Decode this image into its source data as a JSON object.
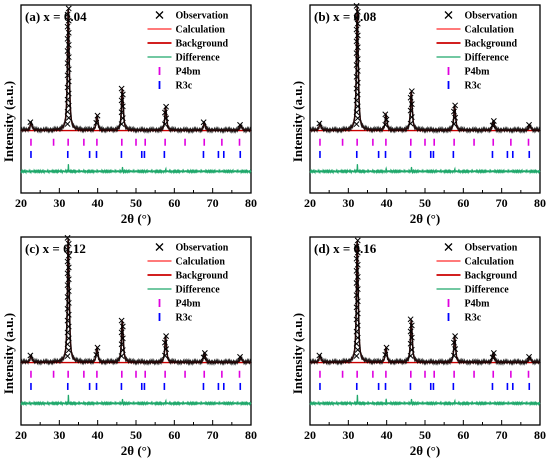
{
  "chart_data": [
    {
      "type": "line",
      "panel": "(a) x = 0.04",
      "label": "(a) x = 0.04",
      "xlabel": "2θ (°)",
      "ylabel": "Intensity (a.u.)",
      "xlim": [
        20,
        80
      ],
      "xticks": [
        20,
        30,
        40,
        50,
        60,
        70,
        80
      ],
      "peaks": [
        {
          "x": 22.6,
          "h": 0.06
        },
        {
          "x": 32.3,
          "h": 0.94
        },
        {
          "x": 39.8,
          "h": 0.11
        },
        {
          "x": 46.4,
          "h": 0.32
        },
        {
          "x": 57.7,
          "h": 0.18
        },
        {
          "x": 67.8,
          "h": 0.06
        },
        {
          "x": 77.3,
          "h": 0.04
        }
      ],
      "P4bm_ticks": [
        22.6,
        28.5,
        32.3,
        36.4,
        39.8,
        46.3,
        50.0,
        52.4,
        57.6,
        62.8,
        67.8,
        72.4,
        77.0
      ],
      "R3c_ticks": [
        22.6,
        32.2,
        37.9,
        39.7,
        46.2,
        51.5,
        52.2,
        57.4,
        67.6,
        71.5,
        72.9,
        77.2
      ],
      "diff_spikes": [
        {
          "x": 32.3,
          "h": 0.05
        },
        {
          "x": 46.4,
          "h": 0.03
        },
        {
          "x": 57.7,
          "h": 0.02
        }
      ]
    },
    {
      "type": "line",
      "panel": "(b) x = 0.08",
      "label": "(b) x = 0.08",
      "xlabel": "2θ (°)",
      "ylabel": "Intensity (a.u.)",
      "xlim": [
        20,
        80
      ],
      "xticks": [
        20,
        30,
        40,
        50,
        60,
        70,
        80
      ],
      "peaks": [
        {
          "x": 22.6,
          "h": 0.05
        },
        {
          "x": 32.3,
          "h": 0.96
        },
        {
          "x": 39.8,
          "h": 0.12
        },
        {
          "x": 46.4,
          "h": 0.3
        },
        {
          "x": 57.7,
          "h": 0.19
        },
        {
          "x": 67.8,
          "h": 0.07
        },
        {
          "x": 77.3,
          "h": 0.04
        }
      ],
      "P4bm_ticks": [
        22.6,
        28.5,
        32.3,
        36.4,
        39.8,
        46.3,
        50.0,
        52.4,
        57.6,
        62.8,
        67.8,
        72.4,
        77.0
      ],
      "R3c_ticks": [
        22.6,
        32.2,
        37.9,
        39.7,
        46.2,
        51.5,
        52.2,
        57.4,
        67.6,
        71.5,
        72.9,
        77.2
      ],
      "diff_spikes": [
        {
          "x": 32.3,
          "h": 0.05
        },
        {
          "x": 39.8,
          "h": 0.02
        },
        {
          "x": 46.4,
          "h": 0.03
        },
        {
          "x": 57.7,
          "h": 0.02
        }
      ]
    },
    {
      "type": "line",
      "panel": "(c) x = 0.12",
      "label": "(c) x = 0.12",
      "xlabel": "2θ (°)",
      "ylabel": "Intensity (a.u.)",
      "xlim": [
        20,
        80
      ],
      "xticks": [
        20,
        30,
        40,
        50,
        60,
        70,
        80
      ],
      "peaks": [
        {
          "x": 22.6,
          "h": 0.05
        },
        {
          "x": 32.3,
          "h": 0.96
        },
        {
          "x": 39.8,
          "h": 0.11
        },
        {
          "x": 46.4,
          "h": 0.32
        },
        {
          "x": 57.7,
          "h": 0.2
        },
        {
          "x": 67.8,
          "h": 0.07
        },
        {
          "x": 77.3,
          "h": 0.04
        }
      ],
      "P4bm_ticks": [
        22.6,
        28.5,
        32.3,
        36.4,
        39.8,
        46.3,
        50.0,
        52.4,
        57.6,
        62.8,
        67.8,
        72.4,
        77.0
      ],
      "R3c_ticks": [
        22.6,
        32.2,
        37.9,
        39.7,
        46.2,
        51.5,
        52.2,
        57.4,
        67.6,
        71.5,
        72.9,
        77.2
      ],
      "diff_spikes": [
        {
          "x": 32.3,
          "h": 0.06
        },
        {
          "x": 46.4,
          "h": 0.03
        },
        {
          "x": 57.7,
          "h": 0.02
        }
      ]
    },
    {
      "type": "line",
      "panel": "(d) x = 0.16",
      "label": "(d) x = 0.16",
      "xlabel": "2θ (°)",
      "ylabel": "Intensity (a.u.)",
      "xlim": [
        20,
        80
      ],
      "xticks": [
        20,
        30,
        40,
        50,
        60,
        70,
        80
      ],
      "peaks": [
        {
          "x": 22.6,
          "h": 0.05
        },
        {
          "x": 32.3,
          "h": 0.94
        },
        {
          "x": 39.8,
          "h": 0.11
        },
        {
          "x": 46.4,
          "h": 0.33
        },
        {
          "x": 57.7,
          "h": 0.2
        },
        {
          "x": 67.8,
          "h": 0.07
        },
        {
          "x": 77.3,
          "h": 0.04
        }
      ],
      "P4bm_ticks": [
        22.6,
        28.5,
        32.3,
        36.4,
        39.8,
        46.3,
        50.0,
        52.4,
        57.6,
        62.8,
        67.8,
        72.4,
        77.0
      ],
      "R3c_ticks": [
        22.6,
        32.2,
        37.9,
        39.7,
        46.2,
        51.5,
        52.2,
        57.4,
        67.6,
        71.5,
        72.9,
        77.2
      ],
      "diff_spikes": [
        {
          "x": 32.3,
          "h": 0.06
        },
        {
          "x": 39.8,
          "h": 0.03
        },
        {
          "x": 46.4,
          "h": 0.03
        },
        {
          "x": 57.7,
          "h": 0.02
        }
      ]
    }
  ],
  "legend": {
    "observation": "Observation",
    "calculation": "Calculation",
    "background": "Background",
    "difference": "Difference",
    "p4bm": "P4bm",
    "r3c": "R3c"
  },
  "colors": {
    "observation": "#000000",
    "calculation": "#ff2a2a",
    "background": "#cc0000",
    "difference": "#1fa86b",
    "p4bm": "#e000e0",
    "r3c": "#0000ff"
  }
}
